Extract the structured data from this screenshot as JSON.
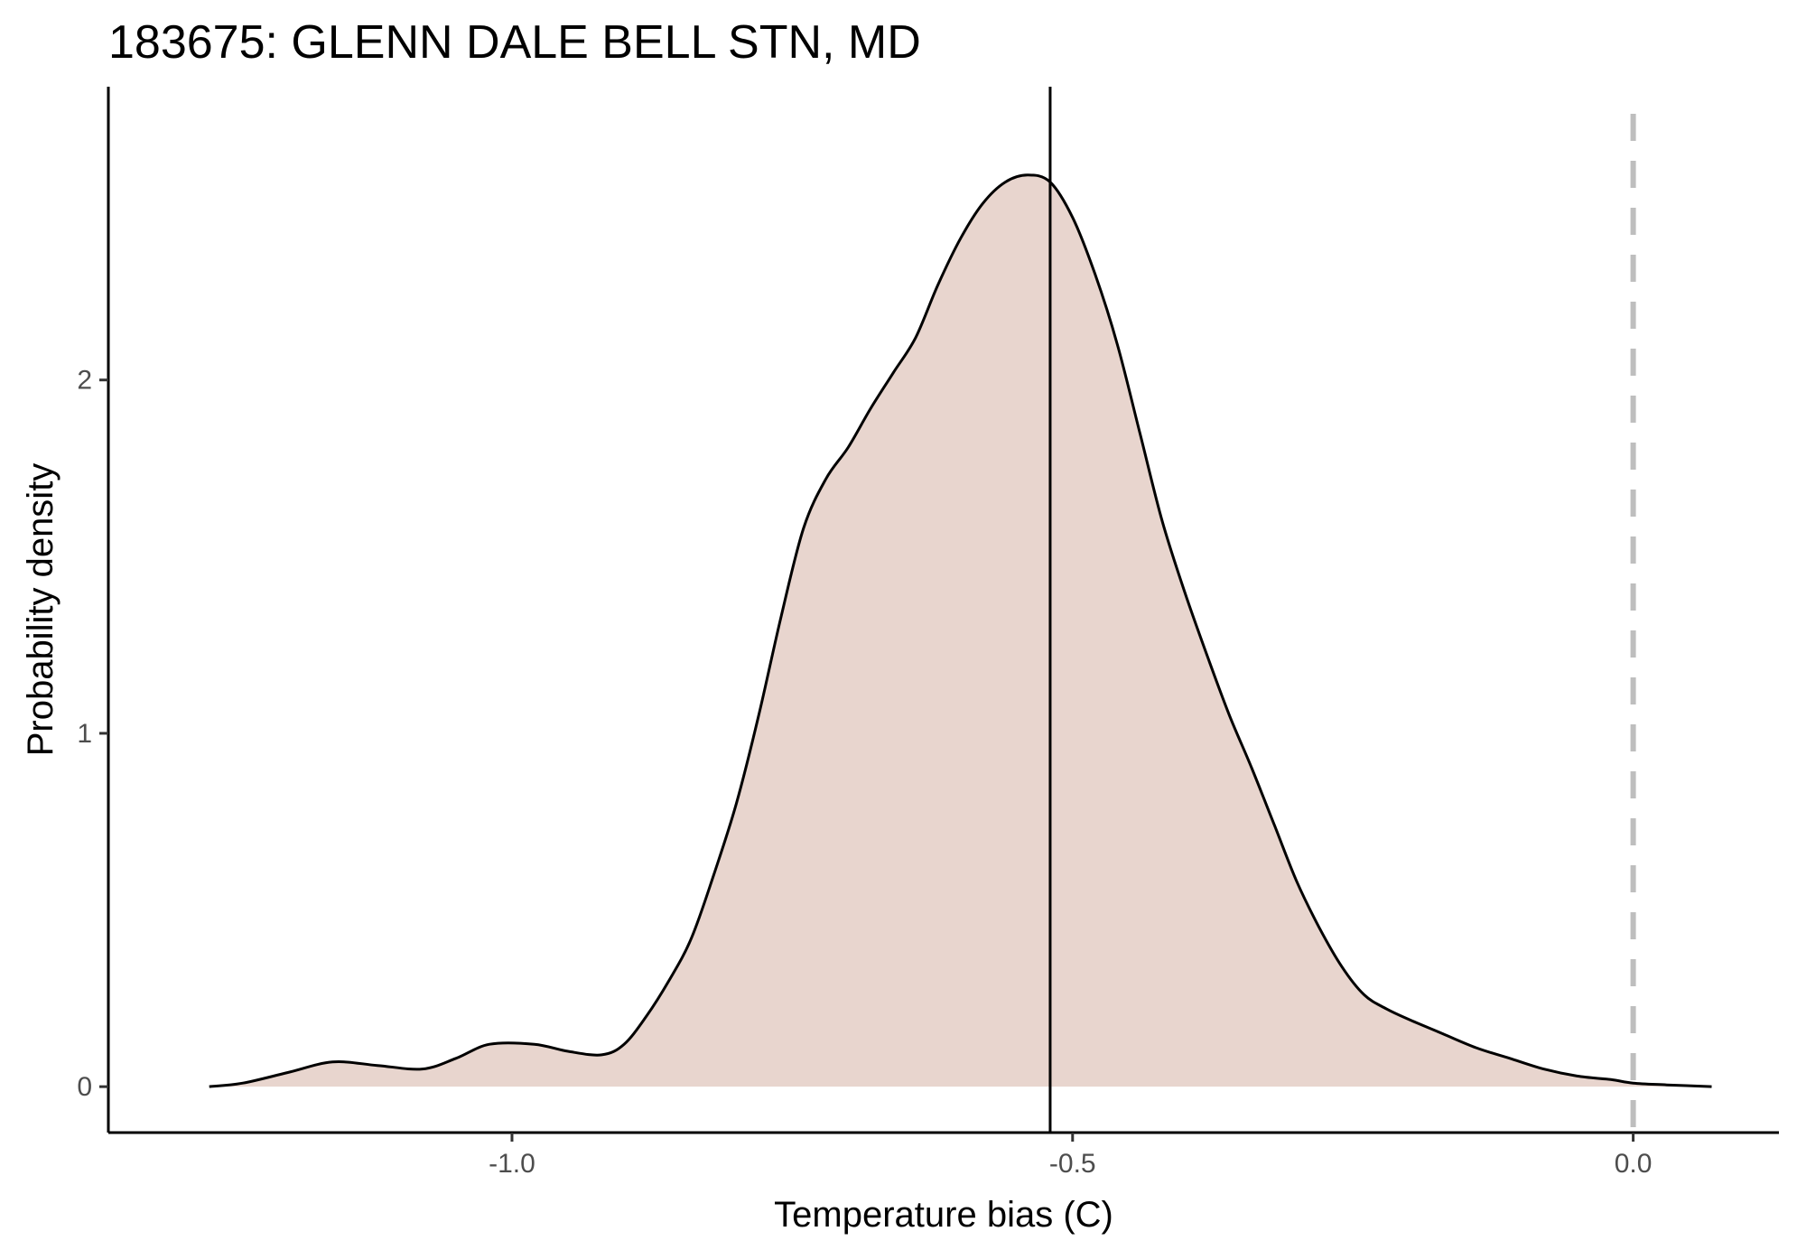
{
  "chart_data": {
    "type": "area",
    "title": "183675: GLENN DALE BELL STN, MD",
    "xlabel": "Temperature bias (C)",
    "ylabel": "Probability density",
    "xlim": [
      -1.36,
      0.13
    ],
    "ylim": [
      -0.13,
      2.83
    ],
    "x_ticks": [
      -1.0,
      -0.5,
      0.0
    ],
    "x_tick_labels": [
      "-1.0",
      "-0.5",
      "0.0"
    ],
    "y_ticks": [
      0,
      1,
      2
    ],
    "y_tick_labels": [
      "0",
      "1",
      "2"
    ],
    "grid": false,
    "legend": "none",
    "series": [
      {
        "x": [
          -1.27,
          -1.24,
          -1.2,
          -1.16,
          -1.12,
          -1.08,
          -1.05,
          -1.02,
          -0.98,
          -0.95,
          -0.92,
          -0.9,
          -0.88,
          -0.86,
          -0.84,
          -0.82,
          -0.8,
          -0.78,
          -0.76,
          -0.74,
          -0.72,
          -0.7,
          -0.68,
          -0.66,
          -0.64,
          -0.62,
          -0.6,
          -0.58,
          -0.56,
          -0.54,
          -0.52,
          -0.5,
          -0.48,
          -0.46,
          -0.44,
          -0.42,
          -0.4,
          -0.38,
          -0.36,
          -0.34,
          -0.32,
          -0.3,
          -0.28,
          -0.26,
          -0.24,
          -0.22,
          -0.2,
          -0.17,
          -0.14,
          -0.11,
          -0.08,
          -0.05,
          -0.02,
          0.0,
          0.03,
          0.07
        ],
        "y": [
          0.0,
          0.01,
          0.04,
          0.07,
          0.06,
          0.05,
          0.08,
          0.12,
          0.12,
          0.1,
          0.09,
          0.12,
          0.2,
          0.3,
          0.42,
          0.6,
          0.8,
          1.05,
          1.33,
          1.58,
          1.72,
          1.81,
          1.92,
          2.02,
          2.12,
          2.27,
          2.4,
          2.5,
          2.56,
          2.58,
          2.56,
          2.46,
          2.3,
          2.1,
          1.85,
          1.6,
          1.4,
          1.22,
          1.05,
          0.9,
          0.74,
          0.58,
          0.45,
          0.34,
          0.26,
          0.22,
          0.19,
          0.15,
          0.11,
          0.08,
          0.05,
          0.03,
          0.02,
          0.01,
          0.005,
          0.0
        ]
      }
    ],
    "reference_lines": [
      {
        "x": -0.52,
        "style": "solid"
      },
      {
        "x": 0.0,
        "style": "dashed"
      }
    ],
    "colors": {
      "fill": "#e8d5ce",
      "curve": "#000000",
      "mean_line": "#000000",
      "zero_line": "#bebebe",
      "axis": "#000000"
    }
  }
}
